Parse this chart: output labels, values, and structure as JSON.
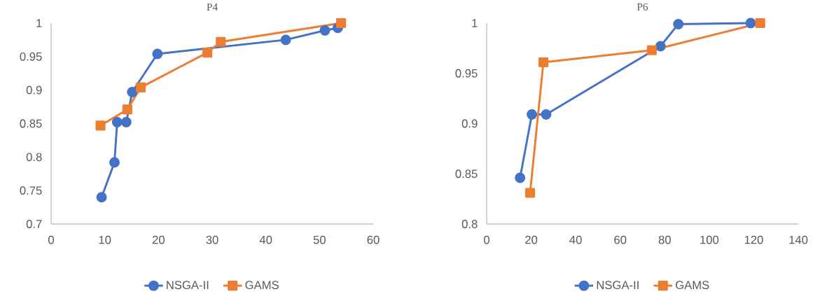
{
  "chart_data": [
    {
      "type": "line",
      "title": "P4",
      "xlim": [
        0,
        60
      ],
      "ylim": [
        0.7,
        1
      ],
      "xticks": [
        0,
        10,
        20,
        30,
        40,
        50,
        60
      ],
      "yticks": [
        0.7,
        0.75,
        0.8,
        0.85,
        0.9,
        0.95,
        1
      ],
      "legend": "bottom",
      "series": [
        {
          "name": "NSGA-II",
          "color": "#4472c4",
          "marker": "circle",
          "x": [
            9.4,
            11.8,
            12.3,
            14.0,
            15.1,
            19.8,
            43.7,
            51.0,
            53.4
          ],
          "values": [
            0.74,
            0.792,
            0.852,
            0.852,
            0.897,
            0.954,
            0.975,
            0.989,
            0.993
          ]
        },
        {
          "name": "GAMS",
          "color": "#ed7d31",
          "marker": "square",
          "x": [
            9.2,
            14.2,
            16.7,
            29.1,
            31.6,
            54.0
          ],
          "values": [
            0.847,
            0.871,
            0.904,
            0.956,
            0.972,
            1.0
          ]
        }
      ]
    },
    {
      "type": "line",
      "title": "P6",
      "xlim": [
        0,
        140
      ],
      "ylim": [
        0.8,
        1
      ],
      "xticks": [
        0,
        20,
        40,
        60,
        80,
        100,
        120,
        140
      ],
      "yticks": [
        0.8,
        0.85,
        0.9,
        0.95,
        1
      ],
      "legend": "bottom",
      "series": [
        {
          "name": "NSGA-II",
          "color": "#4472c4",
          "marker": "circle",
          "x": [
            15.0,
            20.3,
            26.7,
            78.1,
            86.1,
            118.6
          ],
          "values": [
            0.846,
            0.909,
            0.909,
            0.977,
            0.999,
            1.0
          ]
        },
        {
          "name": "GAMS",
          "color": "#ed7d31",
          "marker": "square",
          "x": [
            19.5,
            25.5,
            74.2,
            122.9
          ],
          "values": [
            0.831,
            0.961,
            0.973,
            1.0
          ]
        }
      ]
    }
  ]
}
